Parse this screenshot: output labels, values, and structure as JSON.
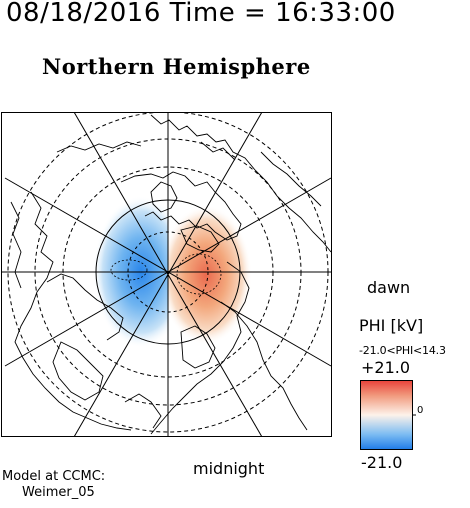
{
  "header": {
    "datetime": "08/18/2016 Time = 16:33:00"
  },
  "map": {
    "title": "Northern Hemisphere",
    "dawn_label": "dawn",
    "midnight_label": "midnight"
  },
  "colorbar": {
    "quantity_label": "PHI [kV]",
    "range_text": "-21.0<PHI<14.3",
    "max_label": "+21.0",
    "min_label": "-21.0",
    "zero_label": "0",
    "colors": {
      "positive": "#e8423a",
      "mid": "#fdf2ea",
      "negative": "#1f7ce8"
    }
  },
  "credit": {
    "line1": "Model at CCMC:",
    "line2": "Weimer_05"
  }
}
